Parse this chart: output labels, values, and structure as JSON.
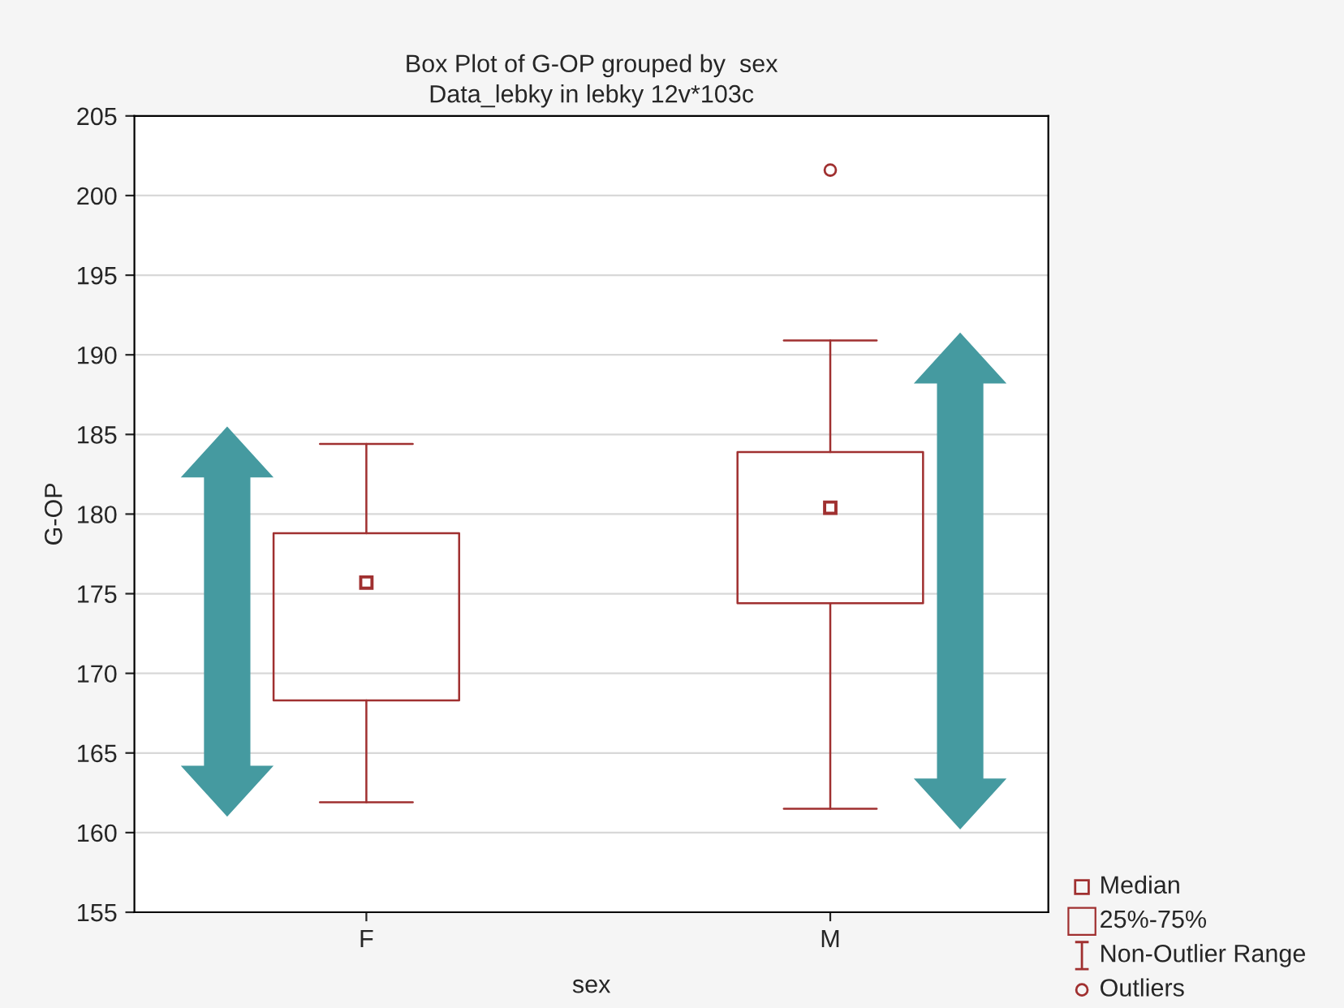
{
  "chart_data": {
    "type": "box",
    "title": "Box Plot of G-OP grouped by  sex\nData_lebky in lebky 12v*103c",
    "xlabel": "sex",
    "ylabel": "G-OP",
    "categories": [
      "F",
      "M"
    ],
    "boxes": [
      {
        "low": 161.9,
        "q1": 168.3,
        "median": 175.7,
        "q3": 178.8,
        "high": 184.4
      },
      {
        "low": 161.5,
        "q1": 174.4,
        "median": 180.4,
        "q3": 183.9,
        "high": 190.9,
        "outliers": [
          201.6
        ]
      }
    ],
    "color": "#a03030",
    "annotations": [
      "Median",
      "25%-75%",
      "Non-Outlier Range",
      "Outliers"
    ],
    "ylim": [
      155,
      205
    ],
    "yticks": [
      155,
      160,
      165,
      170,
      175,
      180,
      185,
      190,
      195,
      200,
      205
    ],
    "grid": "y"
  }
}
